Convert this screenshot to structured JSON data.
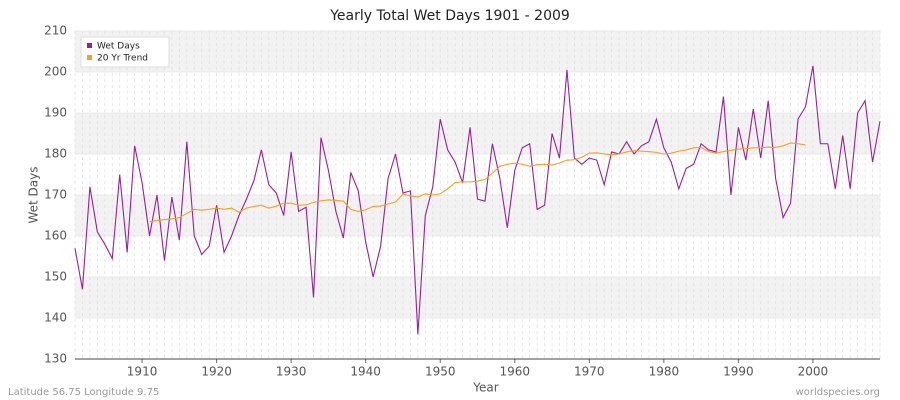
{
  "chart_data": {
    "type": "line",
    "title": "Yearly Total Wet Days 1901 - 2009",
    "x_label": "Year",
    "y_label": "Wet Days",
    "footer_left": "Latitude 56.75 Longitude 9.75",
    "footer_right": "worldspecies.org",
    "legend": "upper left",
    "grid": true,
    "xlim": [
      1901,
      2009
    ],
    "ylim": [
      130,
      210
    ],
    "xticks": [
      1910,
      1920,
      1930,
      1940,
      1950,
      1960,
      1970,
      1980,
      1990,
      2000
    ],
    "yticks": [
      130,
      140,
      150,
      160,
      170,
      180,
      190,
      200,
      210
    ],
    "x": [
      1901,
      1902,
      1903,
      1904,
      1905,
      1906,
      1907,
      1908,
      1909,
      1910,
      1911,
      1912,
      1913,
      1914,
      1915,
      1916,
      1917,
      1918,
      1919,
      1920,
      1921,
      1922,
      1923,
      1924,
      1925,
      1926,
      1927,
      1928,
      1929,
      1930,
      1931,
      1932,
      1933,
      1934,
      1935,
      1936,
      1937,
      1938,
      1939,
      1940,
      1941,
      1942,
      1943,
      1944,
      1945,
      1946,
      1947,
      1948,
      1949,
      1950,
      1951,
      1952,
      1953,
      1954,
      1955,
      1956,
      1957,
      1958,
      1959,
      1960,
      1961,
      1962,
      1963,
      1964,
      1965,
      1966,
      1967,
      1968,
      1969,
      1970,
      1971,
      1972,
      1973,
      1974,
      1975,
      1976,
      1977,
      1978,
      1979,
      1980,
      1981,
      1982,
      1983,
      1984,
      1985,
      1986,
      1987,
      1988,
      1989,
      1990,
      1991,
      1992,
      1993,
      1994,
      1995,
      1996,
      1997,
      1998,
      1999,
      2000,
      2001,
      2002,
      2003,
      2004,
      2005,
      2006,
      2007,
      2008,
      2009
    ],
    "series": [
      {
        "name": "Wet Days",
        "color": "#9b1f9b",
        "values": [
          157,
          147,
          172,
          161,
          158,
          154.5,
          175,
          156,
          182,
          173,
          160,
          170,
          154,
          169.5,
          159,
          183,
          160,
          155.5,
          157.5,
          167.5,
          156,
          160,
          165,
          169,
          173.5,
          181,
          172.5,
          170.5,
          165,
          180.5,
          166,
          167,
          145,
          184,
          176,
          166,
          159.5,
          175.5,
          171,
          158.5,
          150,
          157.5,
          174,
          180,
          170.5,
          171,
          136,
          165,
          172,
          188.5,
          181,
          178,
          173,
          186.5,
          169,
          168.5,
          182.5,
          174,
          162,
          176,
          181.5,
          182.5,
          166.5,
          167.5,
          185,
          179,
          200.5,
          179,
          177.5,
          179,
          178.5,
          172.5,
          180.5,
          180,
          183,
          180,
          182,
          183,
          188.5,
          181.5,
          178,
          171.5,
          176.5,
          177.5,
          182.5,
          181,
          180.5,
          194,
          170,
          186.5,
          178.5,
          191,
          179,
          193,
          174,
          164.5,
          168,
          188.5,
          191.5,
          201.5,
          182.5,
          182.5,
          171.5,
          184.5,
          171.5,
          190,
          193,
          178,
          188
        ]
      },
      {
        "name": "20 Yr Trend",
        "color": "#f5a021",
        "values": [
          null,
          null,
          null,
          null,
          null,
          null,
          null,
          null,
          null,
          null,
          163.5,
          163.8,
          164,
          164.2,
          164.5,
          165.5,
          166.5,
          166.3,
          166.5,
          166.8,
          166.5,
          166.8,
          165.8,
          166.8,
          167.2,
          167.5,
          166.8,
          167.3,
          168,
          168,
          167.5,
          167.6,
          168.2,
          168.6,
          168.8,
          168.7,
          168.5,
          166.5,
          166,
          166.4,
          167.2,
          167.3,
          167.8,
          168.3,
          170.2,
          169.8,
          169.5,
          170.3,
          170,
          170.3,
          171.5,
          173,
          173.2,
          173.2,
          173.4,
          173.8,
          175.3,
          177,
          177.5,
          177.8,
          177.5,
          177,
          177.4,
          177.5,
          177.3,
          177.8,
          178.5,
          178.6,
          179.2,
          180.2,
          180.3,
          180,
          179.8,
          180,
          180.5,
          180.8,
          180.7,
          180.6,
          180.4,
          180,
          180.2,
          180.7,
          181,
          181.5,
          181.6,
          180.6,
          180.2,
          180.6,
          180.9,
          181.2,
          181.3,
          181.5,
          181.5,
          181.7,
          181.6,
          182,
          182.7,
          182.5,
          182.2,
          null,
          null,
          null,
          null,
          null,
          null,
          null,
          null,
          null,
          null
        ]
      }
    ]
  }
}
